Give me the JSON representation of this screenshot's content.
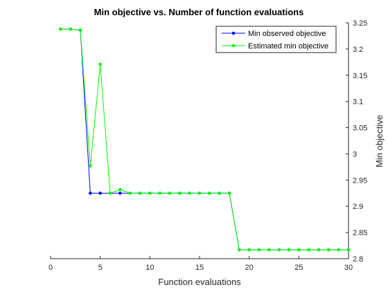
{
  "chart_data": {
    "type": "line",
    "title": "Min objective vs. Number of function evaluations",
    "xlabel": "Function evaluations",
    "ylabel": "Min objective",
    "xlim": [
      0,
      30
    ],
    "ylim": [
      2.8,
      3.25
    ],
    "xticks": [
      0,
      5,
      10,
      15,
      20,
      25,
      30
    ],
    "yticks": [
      2.8,
      2.85,
      2.9,
      2.95,
      3.0,
      3.05,
      3.1,
      3.15,
      3.2,
      3.25
    ],
    "xtick_labels": [
      "0",
      "5",
      "10",
      "15",
      "20",
      "25",
      "30"
    ],
    "ytick_labels": [
      "2.8",
      "2.85",
      "2.9",
      "2.95",
      "3",
      "3.05",
      "3.1",
      "3.15",
      "3.2",
      "3.25"
    ],
    "y_axis_side": "right",
    "grid": false,
    "legend_position": "top-right",
    "series": [
      {
        "name": "Min observed objective",
        "color": "#0000ff",
        "x": [
          1,
          2,
          3,
          4,
          5,
          6,
          7,
          8,
          9,
          10,
          11,
          12,
          13,
          14,
          15,
          16,
          17,
          18,
          19,
          20,
          21,
          22,
          23,
          24,
          25,
          26,
          27,
          28,
          29,
          30
        ],
        "y": [
          3.238,
          3.238,
          3.236,
          2.925,
          2.925,
          2.925,
          2.925,
          2.925,
          2.925,
          2.925,
          2.925,
          2.925,
          2.925,
          2.925,
          2.925,
          2.925,
          2.925,
          2.925,
          2.817,
          2.817,
          2.817,
          2.817,
          2.817,
          2.817,
          2.817,
          2.817,
          2.817,
          2.817,
          2.817,
          2.817
        ]
      },
      {
        "name": "Estimated min objective",
        "color": "#00ff00",
        "x": [
          1,
          2,
          3,
          4,
          5,
          6,
          7,
          8,
          9,
          10,
          11,
          12,
          13,
          14,
          15,
          16,
          17,
          18,
          19,
          20,
          21,
          22,
          23,
          24,
          25,
          26,
          27,
          28,
          29,
          30
        ],
        "y": [
          3.238,
          3.238,
          3.236,
          2.977,
          3.171,
          2.925,
          2.932,
          2.925,
          2.925,
          2.925,
          2.925,
          2.925,
          2.925,
          2.925,
          2.925,
          2.925,
          2.925,
          2.925,
          2.817,
          2.817,
          2.817,
          2.817,
          2.817,
          2.817,
          2.817,
          2.817,
          2.817,
          2.817,
          2.817,
          2.817
        ]
      }
    ]
  }
}
